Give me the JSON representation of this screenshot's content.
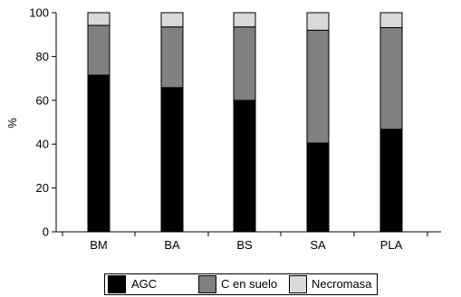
{
  "chart_data": {
    "type": "bar",
    "stacked": true,
    "categories": [
      "BM",
      "BA",
      "BS",
      "SA",
      "PLA"
    ],
    "series": [
      {
        "name": "AGC",
        "values": [
          71.5,
          65.8,
          60.0,
          40.5,
          46.8
        ],
        "color": "#000000"
      },
      {
        "name": "C en suelo",
        "values": [
          22.7,
          27.7,
          33.5,
          51.5,
          46.4
        ],
        "color": "#808080"
      },
      {
        "name": "Necromasa",
        "values": [
          5.8,
          6.5,
          6.5,
          8.0,
          6.8
        ],
        "color": "#d9d9d9"
      }
    ],
    "xlabel": "",
    "ylabel": "%",
    "ylim": [
      0,
      100
    ],
    "yticks": [
      0,
      20,
      40,
      60,
      80,
      100
    ],
    "grid": false,
    "legend_position": "bottom"
  }
}
